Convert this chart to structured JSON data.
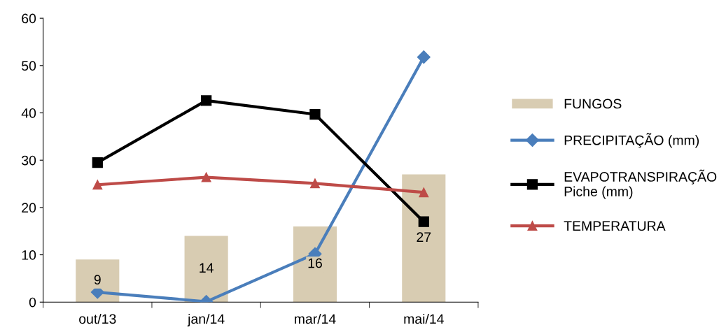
{
  "chart_data": {
    "type": "line",
    "categories": [
      "out/13",
      "jan/14",
      "mar/14",
      "mai/14"
    ],
    "series": [
      {
        "name": "FUNGOS",
        "type": "bar",
        "color": "#d8ccb2",
        "values": [
          9,
          14,
          16,
          27
        ],
        "value_labels": [
          "9",
          "14",
          "16",
          "27"
        ]
      },
      {
        "name": "PRECIPITAÇÃO (mm)",
        "color": "#4a7ebb",
        "marker": "diamond",
        "values": [
          2.1,
          0.1,
          10.2,
          51.8
        ]
      },
      {
        "name": "EVAPOTRANSPIRAÇÃO\nPiche (mm)",
        "color": "#000000",
        "marker": "square",
        "values": [
          29.5,
          42.6,
          39.7,
          17.0
        ]
      },
      {
        "name": "TEMPERATURA",
        "color": "#be4b48",
        "marker": "triangle",
        "values": [
          24.8,
          26.4,
          25.1,
          23.2
        ]
      }
    ],
    "ylim": [
      0,
      60
    ],
    "yticks": [
      0,
      10,
      20,
      30,
      40,
      50,
      60
    ],
    "grid": false,
    "legend": "right"
  }
}
